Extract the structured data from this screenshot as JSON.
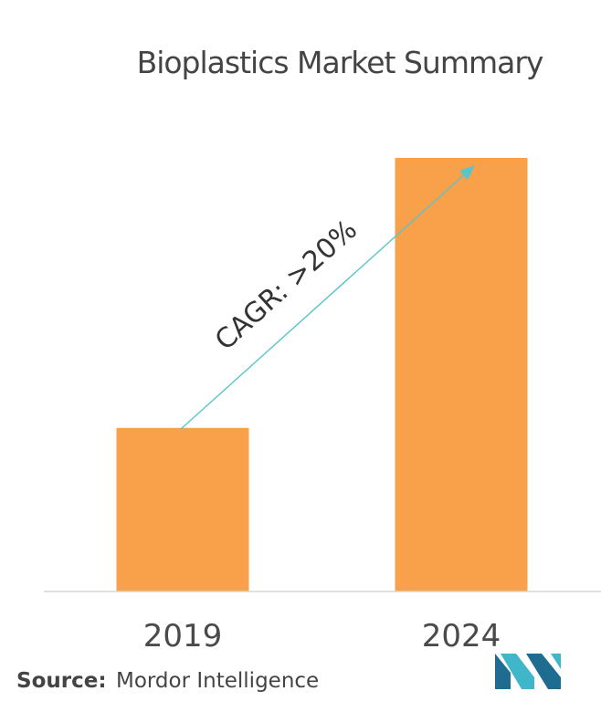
{
  "chart_data": {
    "type": "bar",
    "title": "Bioplastics Market Summary",
    "categories": [
      "2019",
      "2024"
    ],
    "values": [
      1.0,
      2.65
    ],
    "ylim": [
      0,
      2.8
    ],
    "xlabel": "",
    "ylabel": "",
    "grid": false,
    "legend": "none",
    "annotation": "CAGR: >20%"
  },
  "source": {
    "label": "Source:",
    "value": "Mordor Intelligence"
  },
  "colors": {
    "bar": "#F9A04A",
    "arrow": "#5BC4C8",
    "axis": "#D6D6D6",
    "logo_dark": "#1E6C8F",
    "logo_light": "#3FB7C9"
  },
  "logo": {
    "icon": "mordor-intelligence-logo-icon"
  }
}
